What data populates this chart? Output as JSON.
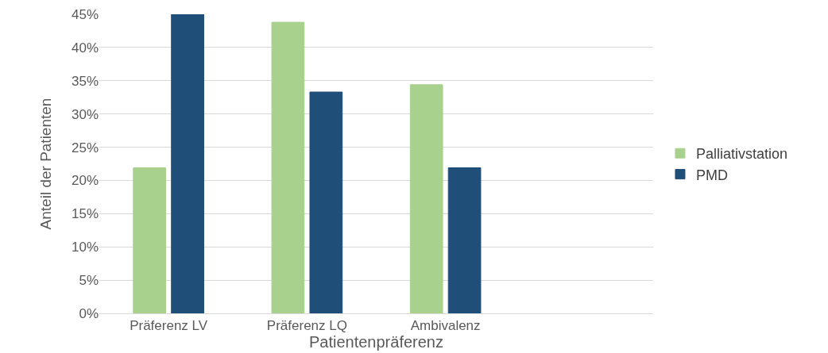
{
  "chart_data": {
    "type": "bar",
    "categories": [
      "Präferenz LV",
      "Präferenz LQ",
      "Ambivalenz",
      null
    ],
    "xlabel": "Patientenpräferenz",
    "ylabel": "Anteil der Patienten",
    "series": [
      {
        "name": "Palliativstation",
        "color": "#a9d18e",
        "values": [
          21.9,
          43.8,
          34.4,
          null
        ]
      },
      {
        "name": "PMD",
        "color": "#1f4e79",
        "values": [
          45,
          33.3,
          21.9,
          null
        ]
      }
    ],
    "ylim": [
      0,
      45
    ],
    "yticks": [
      {
        "value": 0,
        "label": "0%"
      },
      {
        "value": 5,
        "label": "5%"
      },
      {
        "value": 10,
        "label": "10%"
      },
      {
        "value": 15,
        "label": "15%"
      },
      {
        "value": 20,
        "label": "20%"
      },
      {
        "value": 25,
        "label": "25%"
      },
      {
        "value": 30,
        "label": "30%"
      },
      {
        "value": 35,
        "label": "35%"
      },
      {
        "value": 40,
        "label": "40%"
      },
      {
        "value": 45,
        "label": "45%"
      }
    ],
    "grid": "y",
    "legend": "right"
  }
}
